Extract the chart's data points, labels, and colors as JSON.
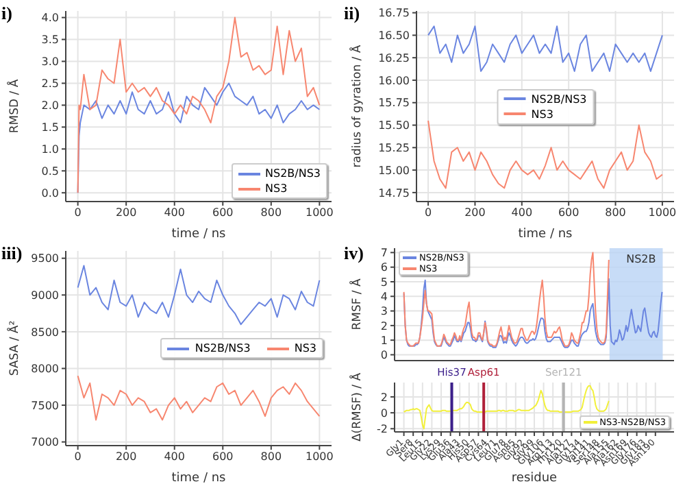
{
  "chart_data": [
    {
      "type": "line",
      "title": "i)",
      "xlabel": "time / ns",
      "ylabel": "RMSD / Å",
      "xlim": [
        -50,
        1050
      ],
      "xticks": [
        0,
        200,
        400,
        600,
        800,
        1000
      ],
      "ylim": [
        -0.2,
        4.15
      ],
      "yticks": [
        {
          "value": 0,
          "label": "0.0"
        },
        {
          "value": 0.5,
          "label": "0.5"
        },
        {
          "value": 1,
          "label": "1.0"
        },
        {
          "value": 1.5,
          "label": "1.5"
        },
        {
          "value": 2,
          "label": "2.0"
        },
        {
          "value": 2.5,
          "label": "2.5"
        },
        {
          "value": 3,
          "label": "3.0"
        },
        {
          "value": 3.5,
          "label": "3.5"
        },
        {
          "value": 4,
          "label": "4.0"
        }
      ],
      "grid": true,
      "legend": "bottom right",
      "x": [
        0,
        5,
        10,
        25,
        50,
        75,
        100,
        125,
        150,
        175,
        200,
        225,
        250,
        275,
        300,
        325,
        350,
        375,
        400,
        425,
        450,
        475,
        500,
        525,
        550,
        575,
        600,
        625,
        650,
        675,
        700,
        725,
        750,
        775,
        800,
        825,
        850,
        875,
        900,
        925,
        950,
        975,
        1000
      ],
      "series": [
        {
          "name": "NS2B/NS3",
          "color": "#6a85e0",
          "values": [
            0,
            1.3,
            1.6,
            2.0,
            1.9,
            2.1,
            1.7,
            2.0,
            1.8,
            2.1,
            1.8,
            2.3,
            1.9,
            1.8,
            2.1,
            1.8,
            1.9,
            2.3,
            1.8,
            1.6,
            2.2,
            2.0,
            1.9,
            2.4,
            2.2,
            2.0,
            2.3,
            2.5,
            2.2,
            2.1,
            2.0,
            2.2,
            1.8,
            1.9,
            1.7,
            2.0,
            1.6,
            1.8,
            1.9,
            2.1,
            1.9,
            2.0,
            1.9
          ]
        },
        {
          "name": "NS3",
          "color": "#f7866f",
          "values": [
            0,
            2.0,
            1.9,
            2.7,
            1.9,
            2.0,
            2.8,
            2.6,
            2.5,
            3.5,
            2.3,
            2.5,
            2.3,
            2.4,
            2.2,
            2.4,
            2.1,
            2.0,
            1.8,
            2.0,
            1.8,
            2.2,
            2.1,
            1.9,
            1.6,
            2.2,
            2.4,
            3.0,
            4.0,
            3.1,
            3.2,
            2.8,
            2.9,
            2.7,
            2.8,
            3.8,
            2.7,
            3.7,
            3.0,
            3.3,
            2.2,
            2.4,
            2.0
          ]
        }
      ]
    },
    {
      "type": "line",
      "title": "ii)",
      "xlabel": "time / ns",
      "ylabel": "radius of gyration / Å",
      "xlim": [
        -50,
        1050
      ],
      "xticks": [
        0,
        200,
        400,
        600,
        800,
        1000
      ],
      "ylim": [
        14.65,
        16.77
      ],
      "yticks": [
        {
          "value": 14.75,
          "label": "14.75"
        },
        {
          "value": 15,
          "label": "15.00"
        },
        {
          "value": 15.25,
          "label": "15.25"
        },
        {
          "value": 15.5,
          "label": "15.50"
        },
        {
          "value": 15.75,
          "label": "15.75"
        },
        {
          "value": 16,
          "label": "16.00"
        },
        {
          "value": 16.25,
          "label": "16.25"
        },
        {
          "value": 16.5,
          "label": "16.50"
        },
        {
          "value": 16.75,
          "label": "16.75"
        }
      ],
      "grid": true,
      "legend": "center",
      "x": [
        0,
        25,
        50,
        75,
        100,
        125,
        150,
        175,
        200,
        225,
        250,
        275,
        300,
        325,
        350,
        375,
        400,
        425,
        450,
        475,
        500,
        525,
        550,
        575,
        600,
        625,
        650,
        675,
        700,
        725,
        750,
        775,
        800,
        825,
        850,
        875,
        900,
        925,
        950,
        975,
        1000
      ],
      "series": [
        {
          "name": "NS2B/NS3",
          "color": "#6a85e0",
          "values": [
            16.5,
            16.6,
            16.3,
            16.4,
            16.2,
            16.5,
            16.3,
            16.4,
            16.6,
            16.1,
            16.2,
            16.4,
            16.3,
            16.2,
            16.4,
            16.5,
            16.3,
            16.4,
            16.5,
            16.3,
            16.4,
            16.3,
            16.6,
            16.2,
            16.3,
            16.1,
            16.4,
            16.5,
            16.1,
            16.2,
            16.3,
            16.1,
            16.4,
            16.3,
            16.2,
            16.3,
            16.2,
            16.3,
            16.1,
            16.3,
            16.5
          ]
        },
        {
          "name": "NS3",
          "color": "#f7866f",
          "values": [
            15.55,
            15.1,
            14.9,
            14.8,
            15.2,
            15.25,
            15.1,
            15.2,
            15.0,
            15.2,
            15.1,
            14.95,
            14.85,
            14.8,
            15.0,
            15.1,
            15.0,
            14.95,
            15.0,
            14.9,
            15.05,
            15.25,
            15.0,
            15.1,
            15.0,
            14.95,
            14.9,
            15.0,
            15.1,
            14.9,
            14.8,
            15.0,
            15.1,
            15.2,
            15.0,
            15.1,
            15.5,
            15.2,
            15.1,
            14.9,
            14.95
          ]
        }
      ]
    },
    {
      "type": "line",
      "title": "iii)",
      "xlabel": "time / ns",
      "ylabel": "SASA / Å²",
      "xlim": [
        -50,
        1050
      ],
      "xticks": [
        0,
        200,
        400,
        600,
        800,
        1000
      ],
      "ylim": [
        6950,
        9600
      ],
      "yticks": [
        7000,
        7500,
        8000,
        8500,
        9000,
        9500
      ],
      "grid": true,
      "legend": "center right",
      "x": [
        0,
        25,
        50,
        75,
        100,
        125,
        150,
        175,
        200,
        225,
        250,
        275,
        300,
        325,
        350,
        375,
        400,
        425,
        450,
        475,
        500,
        525,
        550,
        575,
        600,
        625,
        650,
        675,
        700,
        725,
        750,
        775,
        800,
        825,
        850,
        875,
        900,
        925,
        950,
        975,
        1000
      ],
      "series": [
        {
          "name": "NS2B/NS3",
          "color": "#6a85e0",
          "values": [
            9100,
            9400,
            9000,
            9100,
            8900,
            8800,
            9200,
            8900,
            8850,
            9000,
            8700,
            8900,
            8800,
            8750,
            8900,
            8700,
            9000,
            9350,
            9000,
            8900,
            9050,
            8950,
            8900,
            9200,
            9000,
            8850,
            8750,
            8600,
            8700,
            8800,
            8900,
            8850,
            8950,
            8700,
            9000,
            8950,
            8800,
            9050,
            8900,
            8850,
            9200
          ]
        },
        {
          "name": "NS3",
          "color": "#f7866f",
          "values": [
            7900,
            7600,
            7800,
            7300,
            7650,
            7600,
            7500,
            7700,
            7650,
            7500,
            7600,
            7550,
            7400,
            7450,
            7300,
            7500,
            7600,
            7450,
            7550,
            7400,
            7500,
            7600,
            7550,
            7750,
            7800,
            7650,
            7700,
            7500,
            7600,
            7700,
            7550,
            7350,
            7600,
            7700,
            7750,
            7650,
            7800,
            7700,
            7550,
            7450,
            7350
          ]
        }
      ]
    },
    {
      "type": "line",
      "title": "iv)",
      "ylabel": "RMSF / Å",
      "tick_labels": "y",
      "ylim": [
        -0.4,
        7.3
      ],
      "yticks": [
        0,
        1,
        2,
        3,
        4,
        5,
        6,
        7
      ],
      "grid": true,
      "legend": "top left",
      "categories": [
        null,
        null,
        null,
        null,
        null,
        null,
        null,
        null,
        null,
        null,
        null,
        null,
        null,
        null,
        null,
        null,
        null,
        null,
        null,
        null,
        null,
        null,
        null,
        null,
        null,
        null,
        null,
        null,
        null,
        null,
        null,
        null,
        null,
        null,
        null,
        null,
        null,
        null,
        null,
        null,
        null,
        null,
        null,
        null,
        null,
        null,
        null,
        null,
        null,
        null,
        null,
        null,
        null,
        null,
        null,
        null,
        null,
        null,
        null,
        null,
        null,
        null,
        null,
        null,
        null,
        null,
        null,
        null,
        null,
        null,
        null,
        null,
        null,
        null,
        null,
        null,
        null,
        null,
        null,
        null,
        null,
        null,
        null,
        null,
        null,
        null,
        null,
        null,
        null,
        null,
        null,
        null,
        null,
        null,
        null,
        null,
        null,
        null,
        null,
        null,
        null,
        null,
        null,
        null,
        null,
        null,
        null,
        null,
        null,
        null,
        null,
        null,
        null,
        null,
        null,
        null,
        null,
        null,
        null,
        null,
        null,
        null,
        null,
        null,
        null,
        null,
        null,
        null,
        null,
        null,
        null,
        null,
        null,
        null,
        null,
        null,
        null,
        null,
        null,
        null,
        null,
        null,
        null,
        null,
        null,
        null,
        null,
        null,
        null,
        null,
        null,
        null,
        null,
        null,
        null,
        null,
        null,
        null,
        null,
        null,
        null,
        null,
        null,
        null,
        null,
        null,
        null,
        null,
        null,
        null,
        null,
        null,
        null,
        null,
        null,
        null,
        null,
        null,
        null,
        null,
        null,
        null,
        null,
        null,
        null,
        null,
        null,
        null,
        null,
        null,
        null,
        null,
        null,
        null,
        null,
        null
      ],
      "annotations": [
        "NS2B"
      ],
      "series": [
        {
          "name": "NS2B/NS3",
          "color": "#6a85e0",
          "values": [
            null,
            4.2,
            2.0,
            1.0,
            0.7,
            0.6,
            0.6,
            0.6,
            0.6,
            0.6,
            0.7,
            0.7,
            0.8,
            1.2,
            2.0,
            3.0,
            4.5,
            5.1,
            3.5,
            3.0,
            2.8,
            2.6,
            2.4,
            1.5,
            0.9,
            0.7,
            0.6,
            0.6,
            0.6,
            0.6,
            0.9,
            1.2,
            1.0,
            0.8,
            0.7,
            0.6,
            0.6,
            0.8,
            1.0,
            1.3,
            1.1,
            0.9,
            0.9,
            1.1,
            0.9,
            1.2,
            1.5,
            1.6,
            1.9,
            2.2,
            2.2,
            1.8,
            1.2,
            1.0,
            1.0,
            0.9,
            1.0,
            1.3,
            1.3,
            1.1,
            0.9,
            1.5,
            2.3,
            1.6,
            0.9,
            0.7,
            0.6,
            0.6,
            0.5,
            0.5,
            0.5,
            0.7,
            1.0,
            1.3,
            1.3,
            1.1,
            0.8,
            0.9,
            0.8,
            1.2,
            1.5,
            1.3,
            1.0,
            0.8,
            0.7,
            0.6,
            0.7,
            0.9,
            1.1,
            1.2,
            1.2,
            1.1,
            0.9,
            0.8,
            0.8,
            0.9,
            1.0,
            1.0,
            1.1,
            1.0,
            1.1,
            1.4,
            1.8,
            2.2,
            2.5,
            2.5,
            2.4,
            1.6,
            1.1,
            0.9,
            0.9,
            0.9,
            1.0,
            1.1,
            1.2,
            1.2,
            1.2,
            1.2,
            1.2,
            1.0,
            0.8,
            0.6,
            0.5,
            0.5,
            0.5,
            0.6,
            0.8,
            1.0,
            1.0,
            0.8,
            0.7,
            0.6,
            0.6,
            0.9,
            1.2,
            1.4,
            1.5,
            1.6,
            1.6,
            1.8,
            2.2,
            3.0,
            3.3,
            3.5,
            2.5,
            1.6,
            1.2,
            0.9,
            0.8,
            0.7,
            0.7,
            0.7,
            0.8,
            1.2,
            3.0,
            5.2,
            2.0,
            0.9,
            0.8,
            0.7,
            1.0,
            0.9,
            1.2,
            1.7,
            1.4,
            1.0,
            1.1,
            1.5,
            2.0,
            1.6,
            2.0,
            2.6,
            3.1,
            2.5,
            2.0,
            1.5,
            1.6,
            2.0,
            1.8,
            1.6,
            2.3,
            3.0,
            3.2,
            2.6,
            2.0,
            1.5,
            1.3,
            1.2,
            1.5,
            1.6,
            1.3,
            1.2,
            1.6,
            2.5,
            3.5,
            4.3
          ]
        },
        {
          "name": "NS3",
          "color": "#f7866f",
          "values": [
            null,
            4.3,
            2.0,
            1.0,
            0.8,
            0.7,
            0.6,
            0.6,
            0.6,
            0.7,
            0.8,
            0.8,
            0.8,
            1.2,
            1.8,
            2.5,
            3.5,
            4.4,
            3.5,
            3.0,
            3.0,
            2.9,
            2.8,
            1.8,
            1.0,
            0.8,
            0.6,
            0.6,
            0.6,
            0.7,
            1.0,
            1.4,
            1.2,
            0.9,
            0.8,
            0.7,
            0.7,
            1.0,
            1.2,
            1.5,
            1.3,
            1.0,
            1.0,
            1.3,
            1.0,
            1.5,
            1.8,
            2.0,
            2.6,
            3.2,
            3.6,
            2.5,
            1.5,
            1.2,
            1.2,
            1.0,
            1.1,
            1.5,
            1.5,
            1.2,
            1.0,
            1.5,
            2.2,
            1.8,
            1.0,
            0.8,
            0.7,
            0.7,
            0.6,
            0.6,
            0.6,
            0.8,
            1.2,
            1.6,
            1.9,
            1.4,
            1.0,
            1.2,
            1.0,
            1.5,
            2.0,
            1.6,
            1.2,
            1.0,
            0.8,
            0.8,
            0.9,
            1.2,
            1.5,
            1.8,
            1.8,
            1.4,
            1.2,
            1.0,
            1.0,
            1.2,
            1.4,
            1.6,
            1.6,
            1.4,
            1.6,
            2.2,
            3.0,
            3.8,
            4.5,
            5.1,
            4.0,
            2.5,
            1.6,
            1.2,
            1.2,
            1.2,
            1.2,
            1.4,
            1.6,
            1.5,
            1.6,
            1.8,
            1.9,
            1.5,
            1.0,
            0.8,
            0.6,
            0.6,
            0.6,
            0.7,
            1.0,
            1.5,
            1.3,
            1.0,
            0.9,
            0.8,
            0.8,
            1.2,
            1.6,
            2.2,
            2.2,
            2.6,
            3.0,
            3.0,
            4.0,
            5.5,
            6.5,
            7.0,
            5.0,
            3.0,
            1.8,
            1.2,
            1.0,
            0.9,
            0.8,
            0.8,
            0.9,
            1.5,
            4.0,
            6.5,
            null,
            null,
            null,
            null,
            null,
            null,
            null,
            null,
            null,
            null,
            null,
            null,
            null,
            null,
            null,
            null,
            null,
            null,
            null,
            null,
            null,
            null,
            null,
            null,
            null,
            null,
            null,
            null,
            null,
            null,
            null,
            null,
            null,
            null,
            null,
            null,
            null,
            null,
            null,
            null
          ]
        }
      ]
    },
    {
      "type": "line",
      "xlabel": "residue",
      "ylabel": "Δ(RMSF) / Å",
      "ylim": [
        -2.4,
        3.8
      ],
      "yticks": [
        -2,
        0,
        2
      ],
      "grid": true,
      "legend": "bottom right",
      "categories": [
        null,
        "Gly1",
        null,
        null,
        null,
        null,
        null,
        null,
        "Ser8",
        null,
        null,
        null,
        null,
        null,
        null,
        "Leu15",
        null,
        null,
        null,
        null,
        null,
        null,
        "Gly22",
        null,
        null,
        null,
        null,
        null,
        null,
        "Lys29",
        null,
        null,
        null,
        null,
        null,
        null,
        "Glu36",
        null,
        null,
        null,
        null,
        null,
        null,
        "Ala43",
        null,
        null,
        null,
        null,
        null,
        null,
        "His50",
        null,
        null,
        null,
        null,
        null,
        null,
        "Asp57",
        null,
        null,
        null,
        null,
        null,
        null,
        "Cys64",
        null,
        null,
        null,
        null,
        null,
        null,
        "Leu71",
        null,
        null,
        null,
        null,
        null,
        null,
        "Glu78",
        null,
        null,
        null,
        null,
        null,
        null,
        "Asn85",
        null,
        null,
        null,
        null,
        null,
        null,
        "Gly92",
        null,
        null,
        null,
        null,
        null,
        null,
        "Gly99",
        null,
        null,
        null,
        null,
        null,
        null,
        "Gly106",
        null,
        null,
        null,
        null,
        null,
        null,
        "Arg113",
        null,
        null,
        null,
        null,
        null,
        null,
        "Thr120",
        null,
        null,
        null,
        null,
        null,
        null,
        "Ala127",
        null,
        null,
        null,
        null,
        null,
        null,
        "Gly134",
        null,
        null,
        null,
        null,
        null,
        null,
        "Val141",
        null,
        null,
        null,
        null,
        null,
        null,
        "Ser148",
        null,
        null,
        null,
        null,
        null,
        null,
        "Ala155",
        null,
        null,
        null,
        null,
        null,
        null,
        "Ala162",
        null,
        null,
        null,
        null,
        null,
        null,
        "Asn169",
        null,
        null,
        null,
        null,
        null,
        null,
        "Gly176",
        null,
        null,
        null,
        null,
        null,
        null,
        "Gly183",
        null,
        null,
        null,
        null,
        null,
        null,
        "Asn190",
        null,
        null,
        null,
        null,
        null
      ],
      "annotations": [
        "His37",
        "Asp61",
        "Ser121"
      ],
      "series": [
        {
          "name": "NS3-NS2B/NS3",
          "color": "#f2f03a",
          "values": [
            null,
            0.1,
            0.2,
            0.3,
            0.3,
            0.3,
            0.4,
            0.4,
            0.5,
            0.4,
            0.5,
            0.5,
            0.4,
            0.3,
            -0.5,
            -1.5,
            -2.0,
            -0.7,
            0.5,
            0.8,
            1.0,
            0.6,
            0.3,
            0.2,
            0.2,
            0.2,
            0.2,
            0.2,
            0.2,
            0.2,
            0.3,
            0.3,
            0.3,
            0.2,
            0.2,
            0.2,
            0.2,
            0.3,
            0.3,
            0.3,
            0.3,
            0.3,
            0.4,
            0.5,
            0.5,
            0.6,
            0.8,
            1.1,
            1.3,
            1.3,
            1.2,
            1.0,
            0.5,
            0.3,
            0.2,
            0.2,
            0.1,
            0.1,
            0.1,
            0.1,
            0.1,
            0.1,
            0.1,
            0.2,
            0.2,
            0.2,
            0.2,
            0.2,
            0.2,
            0.2,
            0.2,
            0.2,
            0.3,
            0.3,
            0.2,
            0.3,
            0.3,
            0.2,
            0.2,
            0.2,
            0.3,
            0.3,
            0.3,
            0.3,
            0.2,
            0.2,
            0.3,
            0.4,
            0.4,
            0.3,
            0.3,
            0.3,
            0.3,
            0.3,
            0.3,
            0.3,
            0.4,
            0.5,
            0.6,
            0.8,
            0.9,
            1.2,
            1.6,
            2.2,
            2.8,
            2.4,
            1.6,
            0.9,
            0.5,
            0.3,
            0.3,
            0.2,
            0.2,
            0.2,
            0.2,
            0.2,
            0.2,
            0.2,
            0.1,
            0.1,
            0.1,
            0.1,
            0.1,
            0.1,
            0.1,
            0.1,
            0.1,
            0.1,
            0.2,
            0.2,
            0.2,
            0.2,
            0.2,
            0.3,
            0.4,
            0.7,
            1.5,
            2.2,
            2.8,
            3.2,
            3.4,
            3.4,
            3.0,
            2.8,
            2.0,
            1.0,
            0.5,
            0.3,
            0.2,
            0.2,
            0.2,
            0.2,
            0.3,
            0.5,
            1.0,
            1.5,
            null,
            null,
            null,
            null,
            null,
            null,
            null,
            null,
            null,
            null,
            null,
            null,
            null,
            null,
            null,
            null,
            null,
            null,
            null,
            null,
            null,
            null,
            null,
            null,
            null,
            null,
            null,
            null,
            null,
            null,
            null,
            null,
            null,
            null,
            null,
            null,
            null,
            null,
            null,
            null
          ]
        }
      ]
    }
  ]
}
